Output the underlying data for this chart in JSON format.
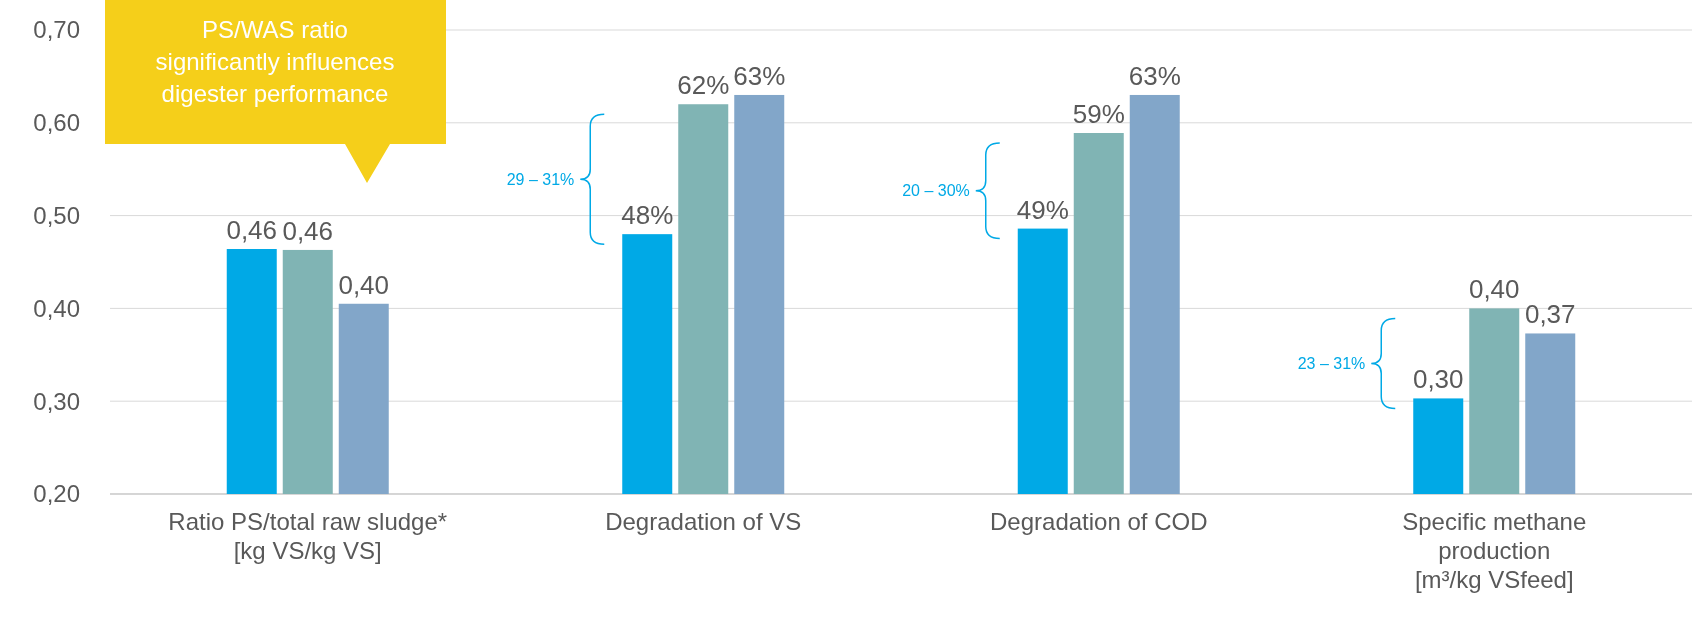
{
  "chart_data": {
    "type": "bar",
    "categories": [
      "Ratio PS/total raw sludge*\n[kg VS/kg VS]",
      "Degradation of VS",
      "Degradation of COD",
      "Specific methane\nproduction\n[m³/kg VSfeed]"
    ],
    "series": [
      {
        "color": "#00a9e6",
        "values": [
          0.464,
          0.48,
          0.486,
          0.303
        ],
        "value_labels": [
          "0,46",
          "48%",
          "49%",
          "0,30"
        ]
      },
      {
        "color": "#80b4b4",
        "values": [
          0.463,
          0.62,
          0.589,
          0.4
        ],
        "value_labels": [
          "0,46",
          "62%",
          "59%",
          "0,40"
        ]
      },
      {
        "color": "#82a6c9",
        "values": [
          0.405,
          0.63,
          0.63,
          0.373
        ],
        "value_labels": [
          "0,40",
          "63%",
          "63%",
          "0,37"
        ]
      }
    ],
    "ylim": [
      0.2,
      0.7
    ],
    "yticks": [
      {
        "value": 0.2,
        "label": "0,20"
      },
      {
        "value": 0.3,
        "label": "0,30"
      },
      {
        "value": 0.4,
        "label": "0,40"
      },
      {
        "value": 0.5,
        "label": "0,50"
      },
      {
        "value": 0.6,
        "label": "0,60"
      },
      {
        "value": 0.7,
        "label": "0,70"
      }
    ],
    "grid": "y",
    "annotations": [
      "PS/WAS ratio significantly influences digester performance",
      "29 – 31%",
      "20 – 30%",
      "23 – 31%"
    ]
  }
}
